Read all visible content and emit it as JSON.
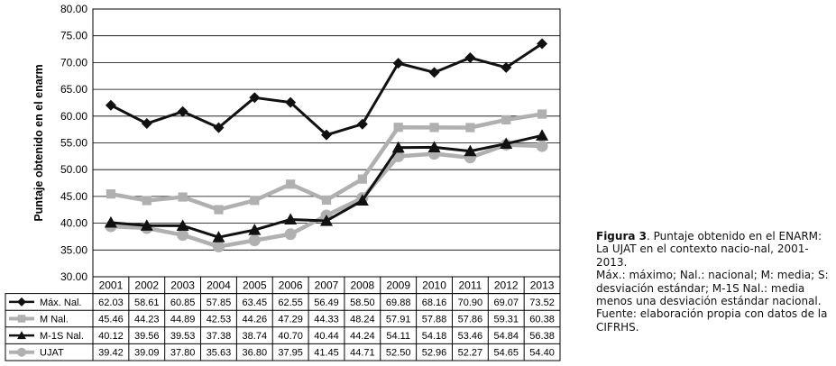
{
  "chart_data": {
    "type": "line",
    "title": "",
    "xlabel": "",
    "ylabel": "Puntaje obtenido en el enarm",
    "ylim": [
      30,
      80
    ],
    "y_ticks": [
      "30.00",
      "35.00",
      "40.00",
      "45.00",
      "50.00",
      "55.00",
      "60.00",
      "65.00",
      "70.00",
      "75.00",
      "80.00"
    ],
    "grid": true,
    "legend": "data-table-left",
    "categories": [
      "2001",
      "2002",
      "2003",
      "2004",
      "2005",
      "2006",
      "2007",
      "2008",
      "2009",
      "2010",
      "2011",
      "2012",
      "2013"
    ],
    "series": [
      {
        "name": "Máx. Nal.",
        "color": "#111111",
        "marker": "diamond",
        "values": [
          62.03,
          58.61,
          60.85,
          57.85,
          63.45,
          62.55,
          56.49,
          58.5,
          69.88,
          68.16,
          70.9,
          69.07,
          73.52
        ],
        "labels": [
          "62.03",
          "58.61",
          "60.85",
          "57.85",
          "63.45",
          "62.55",
          "56.49",
          "58.50",
          "69.88",
          "68.16",
          "70.90",
          "69.07",
          "73.52"
        ]
      },
      {
        "name": "M Nal.",
        "color": "#b0b0b0",
        "marker": "square",
        "values": [
          45.46,
          44.23,
          44.89,
          42.53,
          44.26,
          47.29,
          44.33,
          48.24,
          57.91,
          57.88,
          57.86,
          59.31,
          60.38
        ],
        "labels": [
          "45.46",
          "44.23",
          "44.89",
          "42.53",
          "44.26",
          "47.29",
          "44.33",
          "48.24",
          "57.91",
          "57.88",
          "57.86",
          "59.31",
          "60.38"
        ]
      },
      {
        "name": "M-1S Nal.",
        "color": "#111111",
        "marker": "triangle",
        "values": [
          40.12,
          39.56,
          39.53,
          37.38,
          38.74,
          40.7,
          40.44,
          44.24,
          54.11,
          54.18,
          53.46,
          54.84,
          56.38
        ],
        "labels": [
          "40.12",
          "39.56",
          "39.53",
          "37.38",
          "38.74",
          "40.70",
          "40.44",
          "44.24",
          "54.11",
          "54.18",
          "53.46",
          "54.84",
          "56.38"
        ]
      },
      {
        "name": "UJAT",
        "color": "#b0b0b0",
        "marker": "circle",
        "values": [
          39.42,
          39.09,
          37.8,
          35.63,
          36.8,
          37.95,
          41.45,
          44.71,
          52.5,
          52.96,
          52.27,
          54.65,
          54.4
        ],
        "labels": [
          "39.42",
          "39.09",
          "37.80",
          "35.63",
          "36.80",
          "37.95",
          "41.45",
          "44.71",
          "52.50",
          "52.96",
          "52.27",
          "54.65",
          "54.40"
        ]
      }
    ]
  },
  "caption": {
    "figure_label": "Figura 3",
    "line1": ". Puntaje obtenido en el ENARM: La UJAT en el contexto nacio-nal, 2001-2013.",
    "line2": "Máx.: máximo; Nal.: nacional; M: media; S: desviación estándar; M-1S Nal.: media menos una desviación estándar nacional.",
    "line3": "Fuente: elaboración propia con datos de la CIFRHS."
  }
}
